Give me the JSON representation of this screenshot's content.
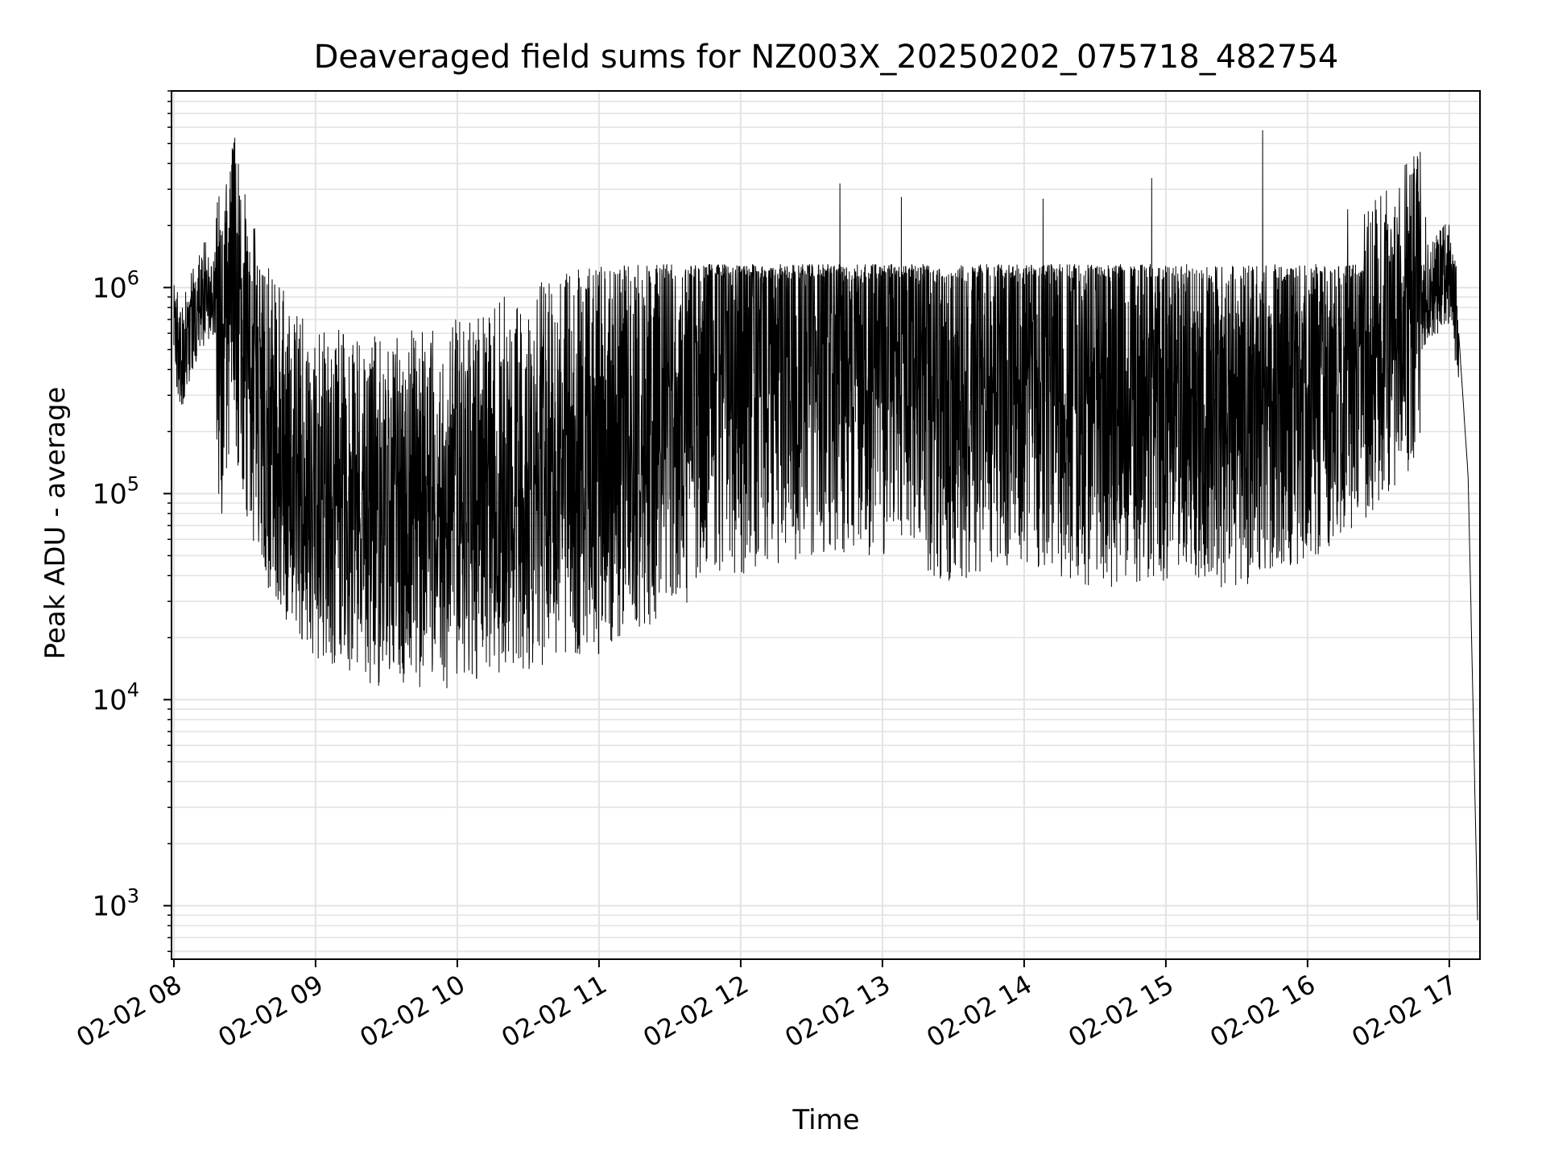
{
  "chart_data": {
    "type": "line",
    "title": "Deaveraged field sums for NZ003X_20250202_075718_482754",
    "xlabel": "Time",
    "ylabel": "Peak ADU - average",
    "x_scale": "time",
    "y_scale": "log",
    "xlim": [
      "02-02 07:59",
      "02-02 17:13"
    ],
    "ylim": [
      550,
      9000000
    ],
    "x_tick_labels": [
      "02-02 08",
      "02-02 09",
      "02-02 10",
      "02-02 11",
      "02-02 12",
      "02-02 13",
      "02-02 14",
      "02-02 15",
      "02-02 16",
      "02-02 17"
    ],
    "y_tick_labels": [
      {
        "base": "10",
        "exp": "3",
        "value": 1000
      },
      {
        "base": "10",
        "exp": "4",
        "value": 10000
      },
      {
        "base": "10",
        "exp": "5",
        "value": 100000
      },
      {
        "base": "10",
        "exp": "6",
        "value": 1000000
      }
    ],
    "grid": true,
    "line_color": "#000000",
    "grid_color": "#e3e3e3",
    "series": [
      {
        "x": [
          "02-02 08:00",
          "02-02 08:03",
          "02-02 08:08",
          "02-02 08:13",
          "02-02 08:17",
          "02-02 08:20",
          "02-02 08:25",
          "02-02 08:30",
          "02-02 08:35",
          "02-02 08:42",
          "02-02 08:50",
          "02-02 09:00",
          "02-02 09:15",
          "02-02 09:30",
          "02-02 10:00",
          "02-02 10:30",
          "02-02 11:00",
          "02-02 11:30",
          "02-02 12:00",
          "02-02 12:30",
          "02-02 13:00",
          "02-02 13:30",
          "02-02 14:00",
          "02-02 14:30",
          "02-02 15:00",
          "02-02 15:30",
          "02-02 16:00",
          "02-02 16:30",
          "02-02 16:50",
          "02-02 17:00",
          "02-02 17:04",
          "02-02 17:08",
          "02-02 17:12"
        ],
        "y": [
          700000,
          450000,
          700000,
          950000,
          1000000,
          400000,
          1100000,
          500000,
          300000,
          180000,
          140000,
          100000,
          90000,
          80000,
          90000,
          120000,
          150000,
          250000,
          400000,
          500000,
          500000,
          350000,
          400000,
          300000,
          300000,
          250000,
          300000,
          500000,
          900000,
          1200000,
          600000,
          120000,
          850
        ]
      }
    ]
  }
}
